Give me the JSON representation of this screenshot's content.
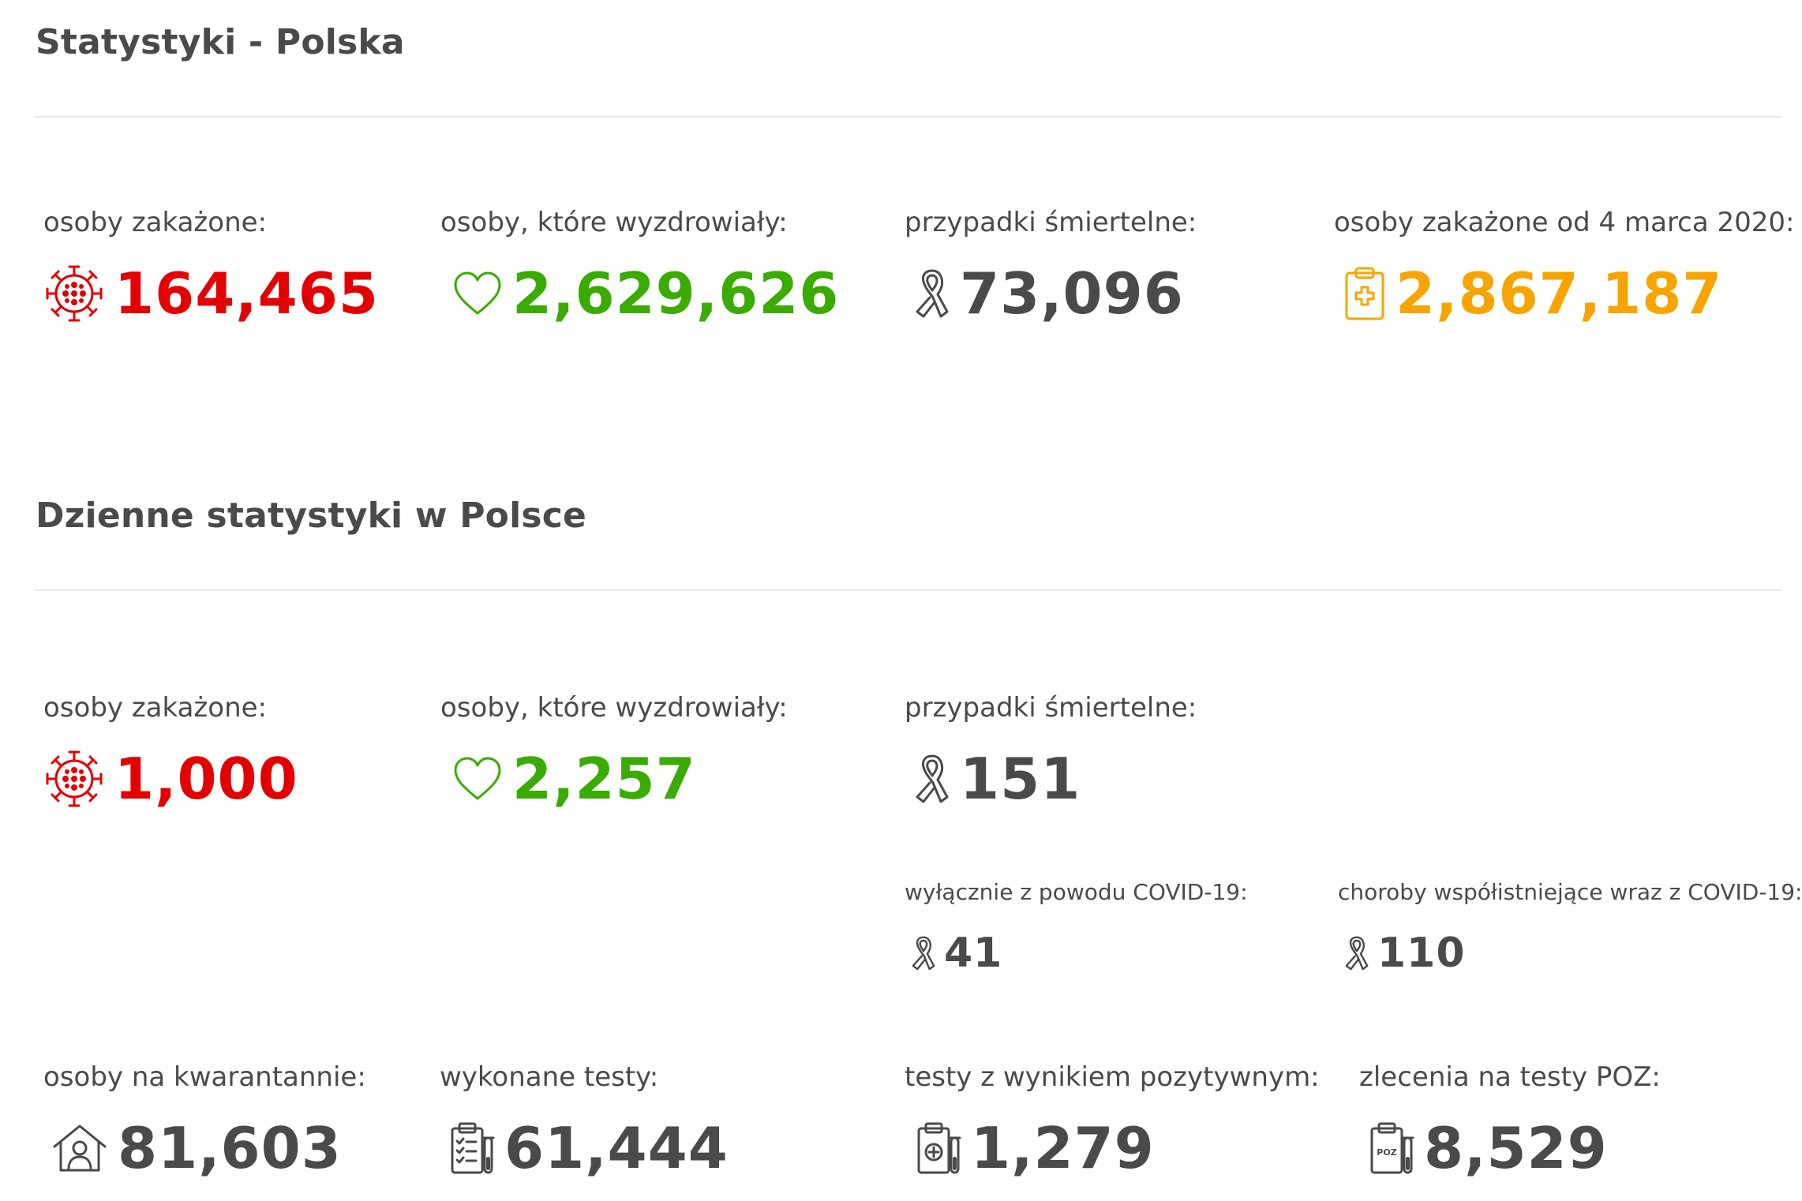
{
  "total": {
    "title": "Statystyki - Polska",
    "infected": {
      "label": "osoby zakażone:",
      "value": "164,465",
      "icon": "virus-icon"
    },
    "recovered": {
      "label": "osoby, które wyzdrowiały:",
      "value": "2,629,626",
      "icon": "heart-icon"
    },
    "deaths": {
      "label": "przypadki śmiertelne:",
      "value": "73,096",
      "icon": "ribbon-icon"
    },
    "since": {
      "label": "osoby zakażone od 4 marca 2020:",
      "value": "2,867,187",
      "icon": "clipboard-plus-icon"
    }
  },
  "daily": {
    "title": "Dzienne statystyki w Polsce",
    "infected": {
      "label": "osoby zakażone:",
      "value": "1,000",
      "icon": "virus-icon"
    },
    "recovered": {
      "label": "osoby, które wyzdrowiały:",
      "value": "2,257",
      "icon": "heart-icon"
    },
    "deaths": {
      "label": "przypadki śmiertelne:",
      "value": "151",
      "icon": "ribbon-icon"
    },
    "deaths_covid_only": {
      "label": "wyłącznie z powodu COVID-19:",
      "value": "41",
      "icon": "ribbon-icon"
    },
    "deaths_comorbid": {
      "label": "choroby współistniejące wraz z COVID-19:",
      "value": "110",
      "icon": "ribbon-icon"
    },
    "quarantine": {
      "label": "osoby na kwarantannie:",
      "value": "81,603",
      "icon": "house-person-icon"
    },
    "tests": {
      "label": "wykonane testy:",
      "value": "61,444",
      "icon": "clipboard-checklist-icon"
    },
    "positive_tests": {
      "label": "testy z wynikiem pozytywnym:",
      "value": "1,279",
      "icon": "clipboard-test-tube-icon"
    },
    "poz_orders": {
      "label": "zlecenia na testy POZ:",
      "value": "8,529",
      "icon": "clipboard-poz-icon",
      "icon_text": "POZ"
    }
  },
  "colors": {
    "infected": "#e30000",
    "recovered": "#3aab00",
    "neutral": "#4a4a4a",
    "since": "#f7a400",
    "divider": "#e6e6e6"
  }
}
